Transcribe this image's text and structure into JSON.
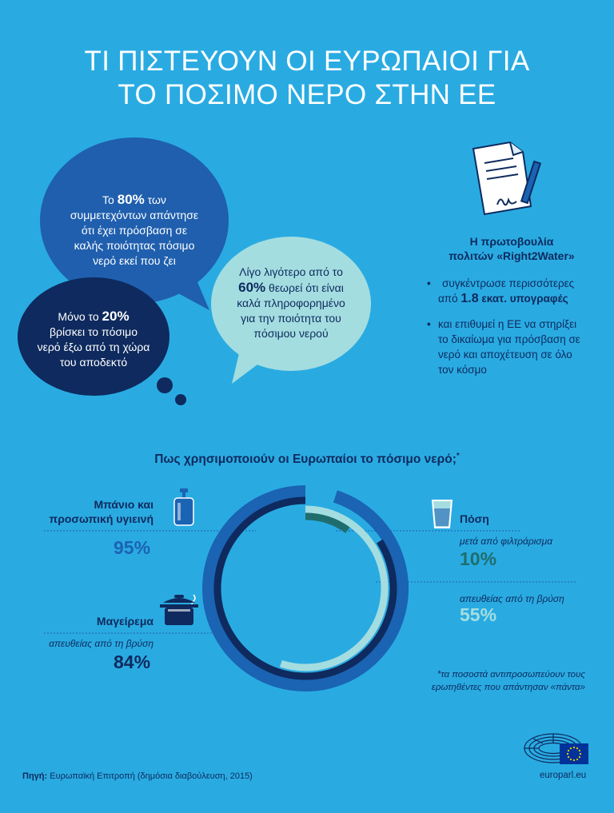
{
  "header": {
    "title_line1": "ΤΙ ΠΙΣΤΕΥΟΥΝ ΟΙ ΕΥΡΩΠΑΙΟΙ ΓΙΑ",
    "title_line2": "ΤΟ ΠΟΣΙΜΟ ΝΕΡΟ ΣΤΗΝ ΕΕ"
  },
  "bubbles": {
    "b80": {
      "pre": "Το ",
      "big": "80%",
      "post": " των",
      "rest": [
        "συμμετεχόντων απάντησε",
        "ότι έχει πρόσβαση σε",
        "καλής ποιότητας πόσιμο",
        "νερό εκεί που ζει"
      ]
    },
    "b60": {
      "line1": "Λίγο λιγότερο από το",
      "big": "60%",
      "post": " θεωρεί ότι είναι",
      "rest": [
        "καλά πληροφορημένο",
        "για την ποιότητα του",
        "πόσιμου νερού"
      ]
    },
    "b20": {
      "pre": "Μόνο το ",
      "big": "20%",
      "rest": [
        "βρίσκει το πόσιμο",
        "νερό έξω από τη χώρα",
        "του αποδεκτό"
      ]
    }
  },
  "initiative": {
    "title_line1": "Η πρωτοβουλία",
    "title_line2": "πολιτών «Right2Water»",
    "bullet1_pre": "συγκέντρωσε περισσότερες",
    "bullet1_from": "από ",
    "bullet1_big": "1.8",
    "bullet1_post": " εκατ. υπογραφές",
    "bullet2": [
      "και επιθυμεί η ΕΕ να στηρίξει",
      "το δικαίωμα για πρόσβαση σε",
      "νερό και αποχέτευση σε όλο",
      "τον κόσμο"
    ],
    "bullet_symbol": "•"
  },
  "usage": {
    "title": "Πως χρησιμοποιούν οι Ευρωπαίοι το πόσιμο νερό;",
    "title_mark": "*",
    "hygiene": {
      "label_line1": "Μπάνιο και",
      "label_line2": "προσωπική υγιεινή",
      "value": "95%"
    },
    "cooking": {
      "label": "Μαγείρεμα",
      "sub": "απευθείας από τη βρύση",
      "value": "84%"
    },
    "drinking": {
      "label": "Πόση",
      "filtered_sub": "μετά από φιλτράρισμα",
      "filtered_value": "10%",
      "tap_sub": "απευθείας από τη βρύση",
      "tap_value": "55%"
    },
    "note_line1": "*τα ποσοστά αντιπροσωπεύουν τους",
    "note_line2": "ερωτηθέντες που απάντησαν «πάντα»"
  },
  "chart_data": {
    "type": "radial_bar",
    "series": [
      {
        "name": "Μπάνιο και προσωπική υγιεινή",
        "value": 95,
        "color": "#1b63b3"
      },
      {
        "name": "Μαγείρεμα – απευθείας από τη βρύση",
        "value": 84,
        "color": "#0e2a5e"
      },
      {
        "name": "Πόση – απευθείας από τη βρύση",
        "value": 55,
        "color": "#a4dde0"
      },
      {
        "name": "Πόση – μετά από φιλτράρισμα",
        "value": 10,
        "color": "#1f6e6d"
      }
    ],
    "max": 100
  },
  "colors": {
    "background": "#29abe2",
    "navy": "#0e2a5e",
    "blue": "#1b63b3",
    "mid_blue": "#1f5fae",
    "light_teal": "#a4dde0",
    "teal_dark": "#1f6e6d"
  },
  "footer": {
    "source_label": "Πηγή:",
    "source_text": " Ευρωπαϊκή Επιτροπή (δημόσια διαβούλευση, 2015)",
    "site": "europarl.eu"
  },
  "icons": [
    "document-signature-icon",
    "soap-bottle-icon",
    "cooking-pot-icon",
    "water-glass-icon",
    "parliament-logo-icon",
    "eu-flag-icon"
  ]
}
